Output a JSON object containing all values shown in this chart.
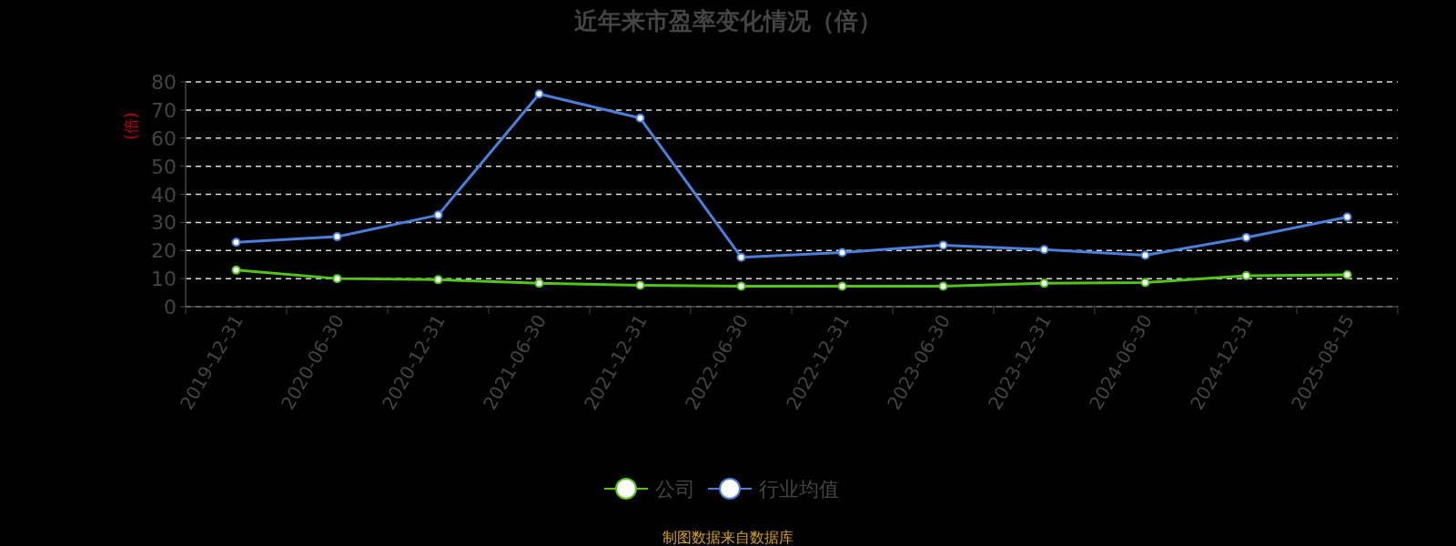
{
  "chart_data": {
    "type": "line",
    "title": "近年来市盈率变化情况（倍）",
    "ylabel": "(倍)",
    "categories": [
      "2019-12-31",
      "2020-06-30",
      "2020-12-31",
      "2021-06-30",
      "2021-12-31",
      "2022-06-30",
      "2022-12-31",
      "2023-06-30",
      "2023-12-31",
      "2024-06-30",
      "2024-12-31",
      "2025-08-15"
    ],
    "series": [
      {
        "name": "公司",
        "color": "#52c41a",
        "values": [
          13.0,
          10.0,
          9.6,
          8.3,
          7.6,
          7.3,
          7.3,
          7.3,
          8.3,
          8.6,
          11.0,
          11.3
        ]
      },
      {
        "name": "行业均值",
        "color": "#4a7fdc",
        "values": [
          22.9,
          24.9,
          32.6,
          75.7,
          67.1,
          17.6,
          19.3,
          21.9,
          20.3,
          18.3,
          24.6,
          31.9
        ]
      }
    ],
    "ylim": [
      0,
      80
    ],
    "yticks": [
      0,
      10,
      20,
      30,
      40,
      50,
      60,
      70,
      80
    ],
    "grid": "y",
    "legend": "bottom",
    "marker": "circle",
    "line_style": "solid",
    "annotations": [
      "制图数据来自数据库"
    ]
  }
}
